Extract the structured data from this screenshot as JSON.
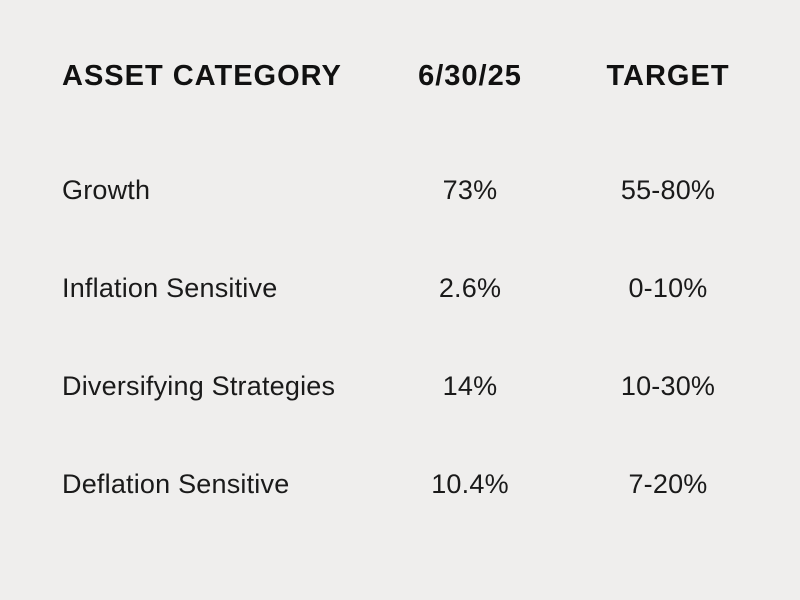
{
  "colors": {
    "background": "#efeeed",
    "header_text": "#111111",
    "body_text": "#1a1a1a"
  },
  "table": {
    "columns": [
      {
        "key": "category",
        "label": "ASSET CATEGORY",
        "align": "left"
      },
      {
        "key": "asof",
        "label": "6/30/25",
        "align": "center"
      },
      {
        "key": "target",
        "label": "TARGET",
        "align": "center"
      }
    ],
    "rows": [
      {
        "category": "Growth",
        "asof": "73%",
        "target": "55-80%"
      },
      {
        "category": "Inflation Sensitive",
        "asof": "2.6%",
        "target": "0-10%"
      },
      {
        "category": "Diversifying Strategies",
        "asof": "14%",
        "target": "10-30%"
      },
      {
        "category": "Deflation Sensitive",
        "asof": "10.4%",
        "target": "7-20%"
      }
    ]
  }
}
